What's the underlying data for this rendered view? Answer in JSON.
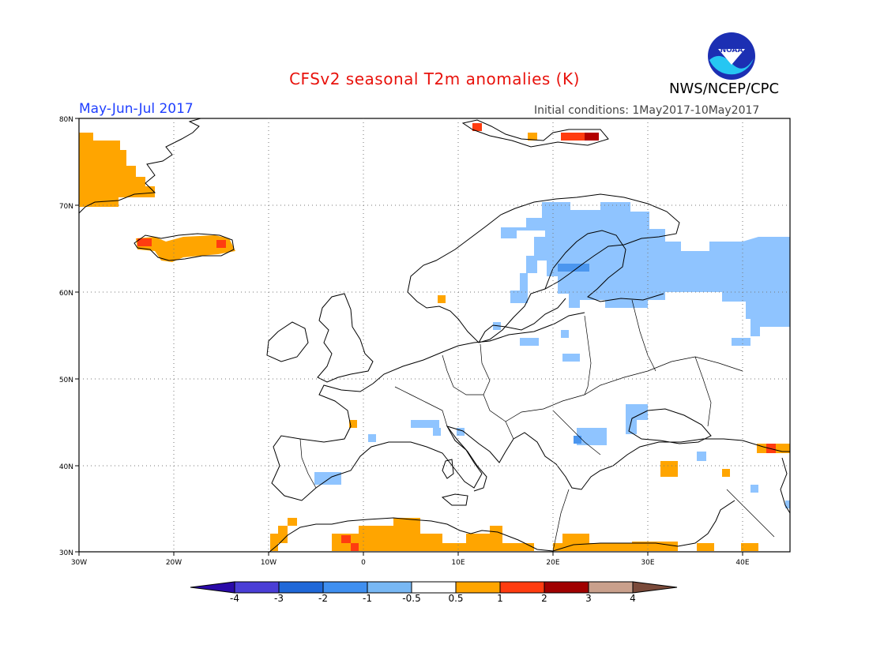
{
  "header": {
    "title": "CFSv2 seasonal T2m anomalies (K)",
    "period": "May-Jun-Jul 2017",
    "initial_conditions": "Initial conditions: 1May2017-10May2017",
    "agency": "NWS/NCEP/CPC",
    "logo_text": "NOAA"
  },
  "map": {
    "lon_range": [
      -30,
      45
    ],
    "lat_range": [
      30,
      80
    ],
    "lat_ticks": [
      "30N",
      "40N",
      "50N",
      "60N",
      "70N",
      "80N"
    ],
    "lon_ticks": [
      "30W",
      "20W",
      "10W",
      "0",
      "10E",
      "20E",
      "30E",
      "40E"
    ],
    "gridlines": "dotted"
  },
  "legend": {
    "labels": [
      "-4",
      "-3",
      "-2",
      "-1",
      "-0.5",
      "0.5",
      "1",
      "2",
      "3",
      "4"
    ],
    "colors": [
      "#2a0aa8",
      "#4a3ed6",
      "#1f68d8",
      "#3f8ff0",
      "#78b8f4",
      "#ffffff",
      "#ffa500",
      "#ff3c10",
      "#a00000",
      "#c9a08c",
      "#7a4a3a"
    ]
  },
  "anomaly_colors": {
    "light_blue": "#8fc4ff",
    "blue": "#4b96ef",
    "orange": "#ffa500",
    "red": "#ff3c10",
    "dark_red": "#b30000"
  }
}
